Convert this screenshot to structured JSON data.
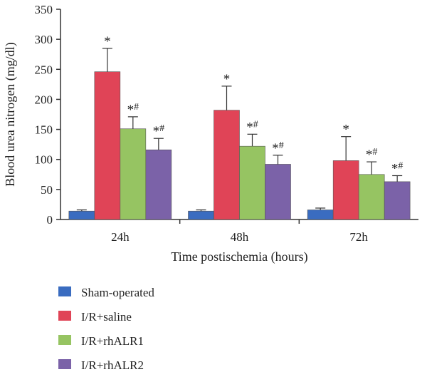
{
  "chart_data": {
    "type": "bar",
    "categories": [
      "24h",
      "48h",
      "72h"
    ],
    "series": [
      {
        "name": "Sham-operated",
        "color": "#3a6cc0",
        "values": [
          14,
          14,
          16
        ],
        "errors": [
          2,
          2,
          3
        ],
        "annotation": [
          "",
          "",
          ""
        ]
      },
      {
        "name": "I/R+saline",
        "color": "#e04457",
        "values": [
          246,
          182,
          98
        ],
        "errors": [
          39,
          40,
          40
        ],
        "annotation": [
          "*",
          "*",
          "*"
        ]
      },
      {
        "name": "I/R+rhALR1",
        "color": "#96c462",
        "values": [
          151,
          122,
          75
        ],
        "errors": [
          20,
          20,
          21
        ],
        "annotation": [
          "*#",
          "*#",
          "*#"
        ]
      },
      {
        "name": "I/R+rhALR2",
        "color": "#7b62a8",
        "values": [
          116,
          92,
          63
        ],
        "errors": [
          19,
          15,
          10
        ],
        "annotation": [
          "*#",
          "*#",
          "*#"
        ]
      }
    ],
    "xlabel": "Time postischemia (hours)",
    "ylabel": "Blood urea nitrogen (mg/dl)",
    "ylim": [
      0,
      350
    ],
    "yticks": [
      0,
      50,
      100,
      150,
      200,
      250,
      300,
      350
    ],
    "grid": false,
    "legend_position": "bottom-left"
  }
}
